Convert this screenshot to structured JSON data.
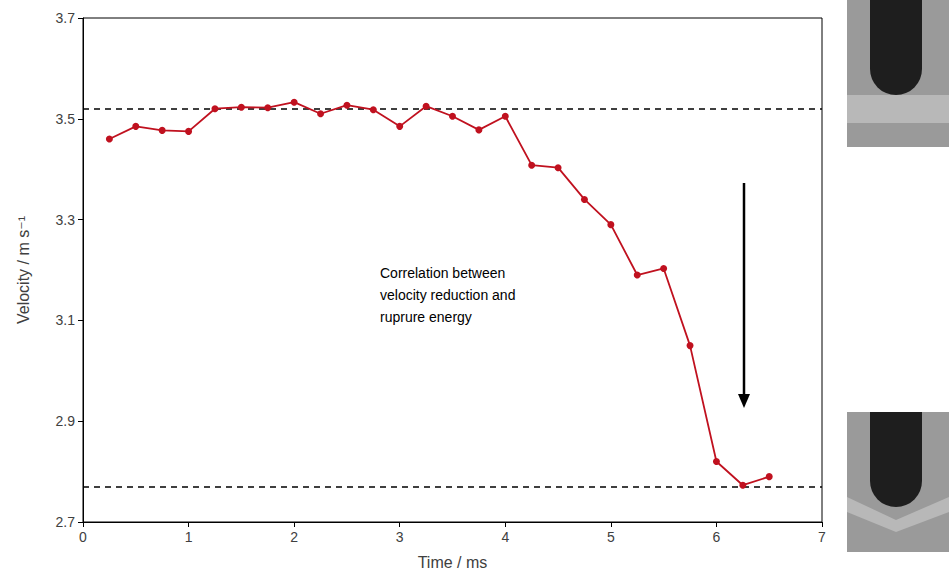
{
  "chart_data": {
    "type": "line",
    "x_label": "Time / ms",
    "y_label": "Velocity / m s⁻¹",
    "x": [
      0.25,
      0.5,
      0.75,
      1.0,
      1.25,
      1.5,
      1.75,
      2.0,
      2.25,
      2.5,
      2.75,
      3.0,
      3.25,
      3.5,
      3.75,
      4.0,
      4.25,
      4.5,
      4.75,
      5.0,
      5.25,
      5.5,
      5.75,
      6.0,
      6.25,
      6.5
    ],
    "values": [
      3.46,
      3.485,
      3.477,
      3.475,
      3.52,
      3.523,
      3.522,
      3.533,
      3.51,
      3.527,
      3.518,
      3.485,
      3.525,
      3.505,
      3.478,
      3.505,
      3.408,
      3.403,
      3.34,
      3.29,
      3.19,
      3.203,
      3.05,
      2.82,
      2.773,
      2.79
    ],
    "color": "#c0111f",
    "marker": "circle",
    "xlim": [
      0,
      7
    ],
    "xticks": [
      0,
      1,
      2,
      3,
      4,
      5,
      6,
      7
    ],
    "ylim": [
      2.7,
      3.7
    ],
    "yticks": [
      2.7,
      2.9,
      3.1,
      3.3,
      3.5,
      3.7
    ],
    "hlines": [
      3.518,
      2.773
    ],
    "annotation": "Correlation between velocity reduction and ruprure energy",
    "grid": false
  }
}
